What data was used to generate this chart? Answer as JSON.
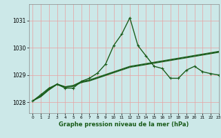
{
  "title": "Graphe pression niveau de la mer (hPa)",
  "background_color": "#cce8e8",
  "grid_color": "#e8a0a0",
  "line_color": "#1a5c1a",
  "xlim": [
    -0.5,
    23
  ],
  "ylim": [
    1027.6,
    1031.6
  ],
  "yticks": [
    1028,
    1029,
    1030,
    1031
  ],
  "xticks": [
    0,
    1,
    2,
    3,
    4,
    5,
    6,
    7,
    8,
    9,
    10,
    11,
    12,
    13,
    14,
    15,
    16,
    17,
    18,
    19,
    20,
    21,
    22,
    23
  ],
  "series": [
    {
      "x": [
        0,
        1,
        2,
        3,
        4,
        5,
        6,
        7,
        8,
        9,
        10,
        11,
        12,
        13,
        14,
        15,
        16,
        17,
        18,
        19,
        20,
        21,
        22,
        23
      ],
      "y": [
        1028.05,
        1028.2,
        1028.45,
        1028.65,
        1028.55,
        1028.58,
        1028.72,
        1028.78,
        1028.88,
        1028.98,
        1029.08,
        1029.18,
        1029.28,
        1029.33,
        1029.38,
        1029.43,
        1029.48,
        1029.53,
        1029.58,
        1029.63,
        1029.68,
        1029.73,
        1029.78,
        1029.83
      ],
      "marker": null,
      "linewidth": 0.8
    },
    {
      "x": [
        0,
        1,
        2,
        3,
        4,
        5,
        6,
        7,
        8,
        9,
        10,
        11,
        12,
        13,
        14,
        15,
        16,
        17,
        18,
        19,
        20,
        21,
        22,
        23
      ],
      "y": [
        1028.05,
        1028.22,
        1028.47,
        1028.67,
        1028.57,
        1028.6,
        1028.74,
        1028.8,
        1028.9,
        1029.0,
        1029.1,
        1029.2,
        1029.3,
        1029.35,
        1029.4,
        1029.45,
        1029.5,
        1029.55,
        1029.6,
        1029.65,
        1029.7,
        1029.75,
        1029.8,
        1029.85
      ],
      "marker": null,
      "linewidth": 0.8
    },
    {
      "x": [
        0,
        1,
        2,
        3,
        4,
        5,
        6,
        7,
        8,
        9,
        10,
        11,
        12,
        13,
        14,
        15,
        16,
        17,
        18,
        19,
        20,
        21,
        22,
        23
      ],
      "y": [
        1028.05,
        1028.24,
        1028.49,
        1028.67,
        1028.57,
        1028.62,
        1028.76,
        1028.82,
        1028.92,
        1029.02,
        1029.12,
        1029.22,
        1029.32,
        1029.37,
        1029.42,
        1029.47,
        1029.52,
        1029.57,
        1029.62,
        1029.67,
        1029.72,
        1029.77,
        1029.82,
        1029.87
      ],
      "marker": null,
      "linewidth": 0.8
    },
    {
      "x": [
        0,
        1,
        2,
        3,
        4,
        5,
        6,
        7,
        8,
        9,
        10,
        11,
        12,
        13,
        14,
        15,
        16,
        17,
        18,
        19,
        20,
        21,
        22,
        23
      ],
      "y": [
        1028.05,
        1028.28,
        1028.52,
        1028.66,
        1028.52,
        1028.52,
        1028.77,
        1028.88,
        1029.07,
        1029.4,
        1030.08,
        1030.5,
        1031.1,
        1030.08,
        1029.7,
        1029.32,
        1029.24,
        1028.88,
        1028.88,
        1029.18,
        1029.32,
        1029.12,
        1029.05,
        1029.0
      ],
      "marker": "+",
      "linewidth": 1.0
    }
  ]
}
